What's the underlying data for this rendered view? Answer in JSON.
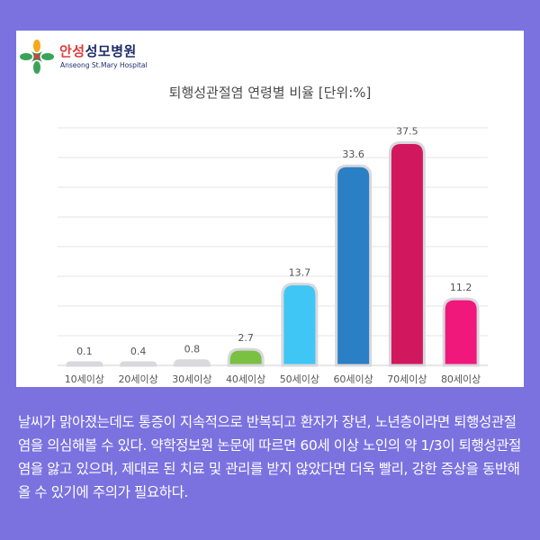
{
  "logo": {
    "name_part1": "안성",
    "name_part2": "성모병원",
    "subtitle": "Anseong St.Mary Hospital"
  },
  "chart_data": {
    "type": "bar",
    "title": "퇴행성관절염 연령별 비율 [단위:%]",
    "categories": [
      "10세이상",
      "20세이상",
      "30세이상",
      "40세이상",
      "50세이상",
      "60세이상",
      "70세이상",
      "80세이상"
    ],
    "values": [
      0.1,
      0.4,
      0.8,
      2.7,
      13.7,
      33.6,
      37.5,
      11.2
    ],
    "value_labels": [
      "0.1",
      "0.4",
      "0.8",
      "2.7",
      "13.7",
      "33.6",
      "37.5",
      "11.2"
    ],
    "colors": [
      "#d9d9d9",
      "#d9d9d9",
      "#d9d9d9",
      "#7ac143",
      "#3fc6f5",
      "#2b7fc4",
      "#d1175e",
      "#f0187a"
    ],
    "ylim": [
      0,
      40
    ],
    "grid": true,
    "legend": "none"
  },
  "caption": "날씨가 맑아졌는데도 통증이 지속적으로 반복되고 환자가 장년, 노년층이라면 퇴행성관절염을 의심해볼 수 있다. 약학정보원 논문에 따르면 60세 이상 노인의 약 1/3이 퇴행성관절염을 앓고 있으며, 제대로 된 치료 및 관리를 받지 않았다면 더욱 빨리, 강한 증상을 동반해 올 수 있기에 주의가 필요하다."
}
